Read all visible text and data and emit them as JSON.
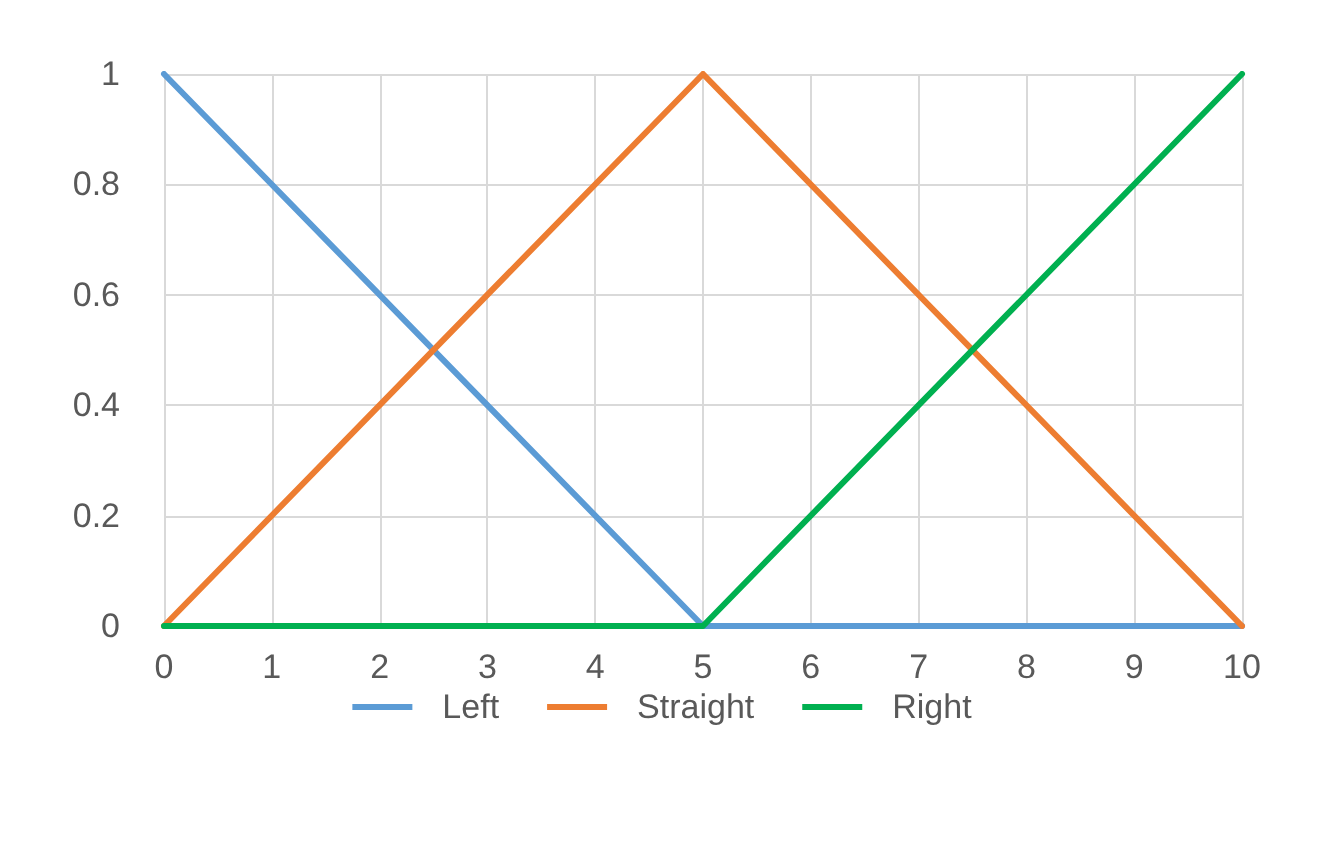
{
  "chart_data": {
    "type": "line",
    "x": [
      0,
      5,
      10
    ],
    "series": [
      {
        "name": "Left",
        "color": "#5b9bd5",
        "values": [
          1,
          0,
          0
        ]
      },
      {
        "name": "Straight",
        "color": "#ed7d31",
        "values": [
          0,
          1,
          0
        ]
      },
      {
        "name": "Right",
        "color": "#00b050",
        "values": [
          0,
          0,
          1
        ]
      }
    ],
    "xlim": [
      0,
      10
    ],
    "xticks": [
      0,
      1,
      2,
      3,
      4,
      5,
      6,
      7,
      8,
      9,
      10
    ],
    "ylim": [
      0,
      1
    ],
    "yticks": [
      0,
      0.2,
      0.4,
      0.6,
      0.8,
      1
    ],
    "grid": true,
    "legend": "bottom",
    "marker": "none",
    "line_style": "solid"
  }
}
